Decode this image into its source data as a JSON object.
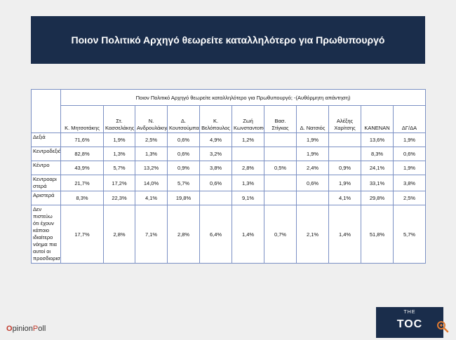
{
  "title": "Ποιον Πολιτικό Αρχηγό θεωρείτε καταλληλότερο για Πρωθυπουργό",
  "table": {
    "question": "Ποιον Πολιτικό Αρχηγό θεωρείτε καταλληλότερο για Πρωθυπουργό; -(Αυθόρμητη απάντηση)",
    "columns": [
      "Κ. Μητσοτάκης",
      "Στ. Κασσελάκης",
      "Ν. Ανδρουλάκης",
      "Δ. Κουτσούμπας",
      "Κ. Βελόπουλος",
      "Ζωή Κωνσταντοπούλου",
      "Βασ. Στίγκας",
      "Δ. Νατσιός",
      "Αλέξης Χαρίτσης",
      "ΚΑΝΕΝΑΝ",
      "ΔΓ/ΔΑ"
    ],
    "rows": [
      {
        "label": "Δεξιά",
        "values": [
          "71,6%",
          "1,9%",
          "2,5%",
          "0,6%",
          "4,9%",
          "1,2%",
          "",
          "1,9%",
          "",
          "13,6%",
          "1,9%"
        ]
      },
      {
        "label": "Κεντροδεξιά",
        "values": [
          "82,8%",
          "1,3%",
          "1,3%",
          "0,6%",
          "3,2%",
          "",
          "",
          "1,9%",
          "",
          "8,3%",
          "0,6%"
        ]
      },
      {
        "label": "Κέντρο",
        "values": [
          "43,9%",
          "5,7%",
          "13,2%",
          "0,9%",
          "3,8%",
          "2,8%",
          "0,5%",
          "2,4%",
          "0,9%",
          "24,1%",
          "1,9%"
        ]
      },
      {
        "label": "Κεντροαριστερά",
        "values": [
          "21,7%",
          "17,2%",
          "14,0%",
          "5,7%",
          "0,6%",
          "1,3%",
          "",
          "0,6%",
          "1,9%",
          "33,1%",
          "3,8%"
        ]
      },
      {
        "label": "Αριστερά",
        "values": [
          "8,3%",
          "22,3%",
          "4,1%",
          "19,8%",
          "",
          "9,1%",
          "",
          "",
          "4,1%",
          "29,8%",
          "2,5%"
        ]
      },
      {
        "label": "Δεν πιστεύω ότι έχουν κάποιο ιδιαίτερο νόημα πια αυτοί οι προσδιορισμοί",
        "values": [
          "17,7%",
          "2,8%",
          "7,1%",
          "2,8%",
          "6,4%",
          "1,4%",
          "0,7%",
          "2,1%",
          "1,4%",
          "51,8%",
          "5,7%"
        ]
      }
    ]
  },
  "logos": {
    "opinionpoll": {
      "o": "O",
      "pinion": "pinion",
      "p": "P",
      "oll": "oll"
    },
    "toc": {
      "the": "THE",
      "toc": "TOC"
    }
  },
  "colors": {
    "navy": "#1a2d4b",
    "border": "#7b90c4",
    "brand_red": "#c0392b"
  }
}
